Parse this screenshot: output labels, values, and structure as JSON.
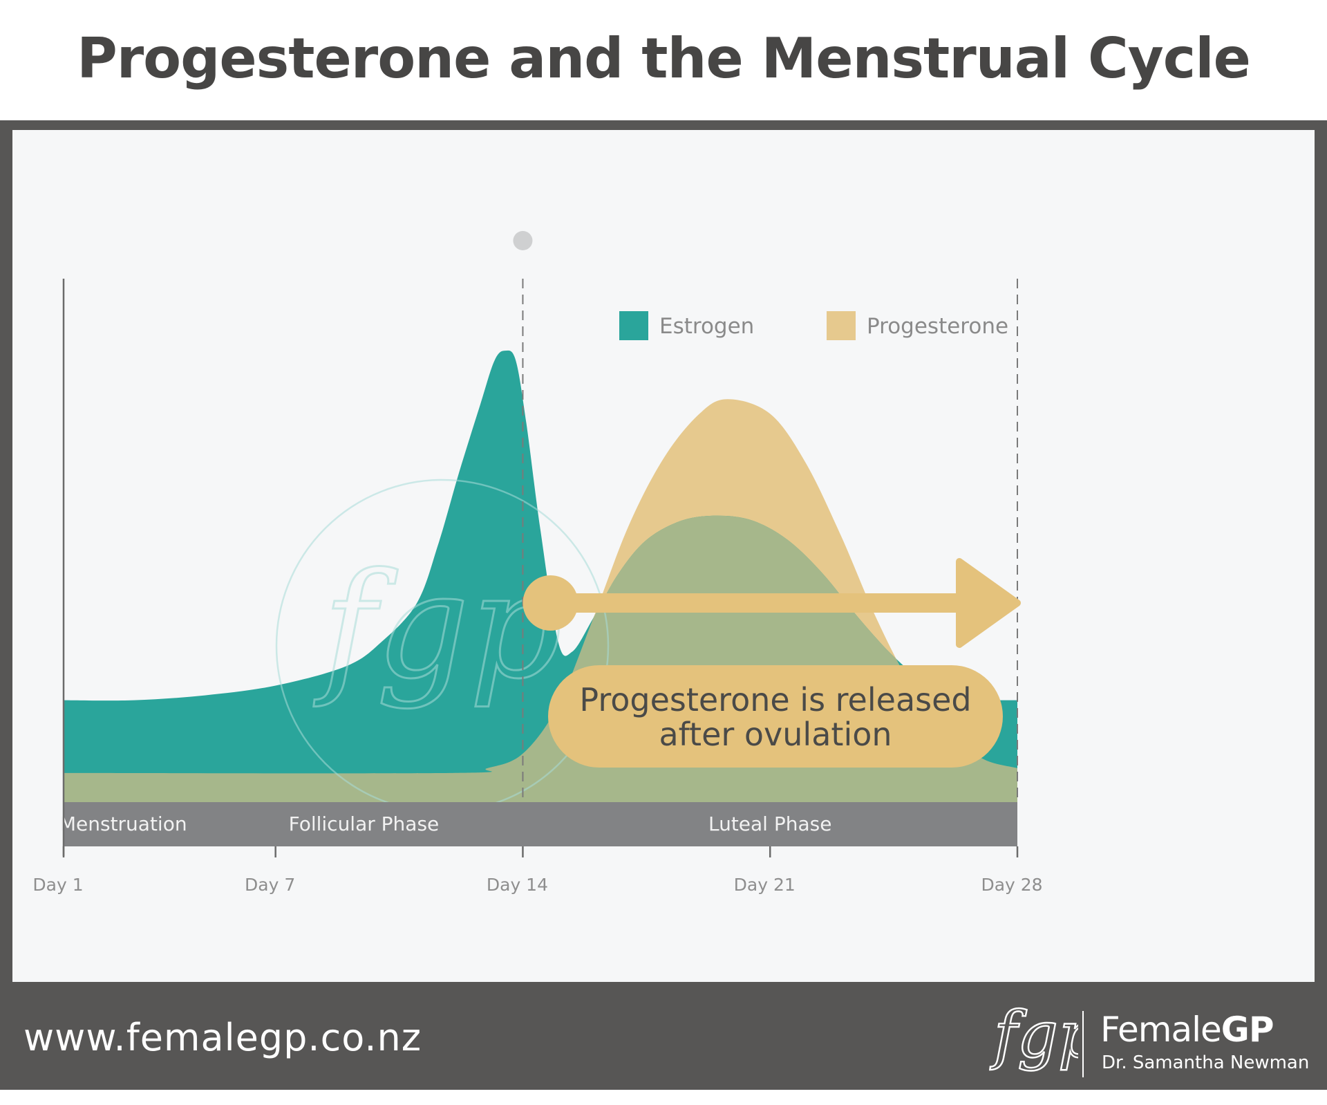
{
  "header": {
    "title": "Progesterone and the Menstrual Cycle"
  },
  "chart_data": {
    "type": "area",
    "title": "",
    "xlabel": "",
    "ylabel": "",
    "xlim": [
      1,
      28
    ],
    "ylim": [
      0,
      100
    ],
    "x_ticks": [
      {
        "x": 1,
        "label": "Day 1"
      },
      {
        "x": 7,
        "label": "Day 7"
      },
      {
        "x": 14,
        "label": "Day 14"
      },
      {
        "x": 21,
        "label": "Day 21"
      },
      {
        "x": 28,
        "label": "Day 28"
      }
    ],
    "series": [
      {
        "name": "Progesterone",
        "color": "#e6c98e",
        "points": [
          [
            1,
            6
          ],
          [
            12,
            6
          ],
          [
            13,
            7
          ],
          [
            14,
            10
          ],
          [
            15,
            20
          ],
          [
            16,
            38
          ],
          [
            17,
            57
          ],
          [
            18,
            71
          ],
          [
            19,
            80
          ],
          [
            19.8,
            83
          ],
          [
            21,
            80
          ],
          [
            22,
            70
          ],
          [
            23,
            55
          ],
          [
            24,
            38
          ],
          [
            25,
            24
          ],
          [
            26,
            15
          ],
          [
            27,
            9
          ],
          [
            28,
            7
          ]
        ]
      },
      {
        "name": "Estrogen",
        "color": "#2aa59b",
        "points": [
          [
            1,
            21
          ],
          [
            3,
            21
          ],
          [
            5,
            22
          ],
          [
            7,
            24
          ],
          [
            9,
            28
          ],
          [
            10,
            33
          ],
          [
            11,
            41
          ],
          [
            11.6,
            53
          ],
          [
            12.2,
            68
          ],
          [
            12.8,
            82
          ],
          [
            13.2,
            91
          ],
          [
            13.5,
            93
          ],
          [
            13.8,
            91
          ],
          [
            14.1,
            78
          ],
          [
            14.5,
            56
          ],
          [
            15,
            33
          ],
          [
            15.4,
            31
          ],
          [
            16,
            38
          ],
          [
            16.7,
            47
          ],
          [
            17.5,
            54
          ],
          [
            18.5,
            58
          ],
          [
            19.5,
            59
          ],
          [
            20.5,
            58
          ],
          [
            21.5,
            54
          ],
          [
            22.5,
            47
          ],
          [
            23.5,
            38
          ],
          [
            24.5,
            30
          ],
          [
            25.5,
            24
          ],
          [
            26.5,
            21
          ],
          [
            27.2,
            21
          ],
          [
            28,
            21
          ]
        ]
      }
    ],
    "overlap_color": "#a6b78b",
    "phases": [
      {
        "label": "Menstruation",
        "start": 1,
        "end": 5
      },
      {
        "label": "Follicular Phase",
        "start": 5,
        "end": 14
      },
      {
        "label": "Luteal Phase",
        "start": 14,
        "end": 28
      }
    ],
    "phase_band_color": "#828385",
    "dashed_lines": [
      14,
      28
    ],
    "legend": {
      "position": "top-right"
    },
    "annotation": {
      "lines": [
        "Progesterone is released",
        "after ovulation"
      ],
      "color": "#e4c27c",
      "arrow_from_day": 14,
      "arrow_to_day": 28,
      "arrow_level": 57
    }
  },
  "watermark": {
    "text": "fgp"
  },
  "footer": {
    "url": "www.femalegp.co.nz",
    "brand_logo": "fgp",
    "brand_name_light": "Female",
    "brand_name_bold": "GP",
    "brand_sub": "Dr. Samantha Newman"
  }
}
